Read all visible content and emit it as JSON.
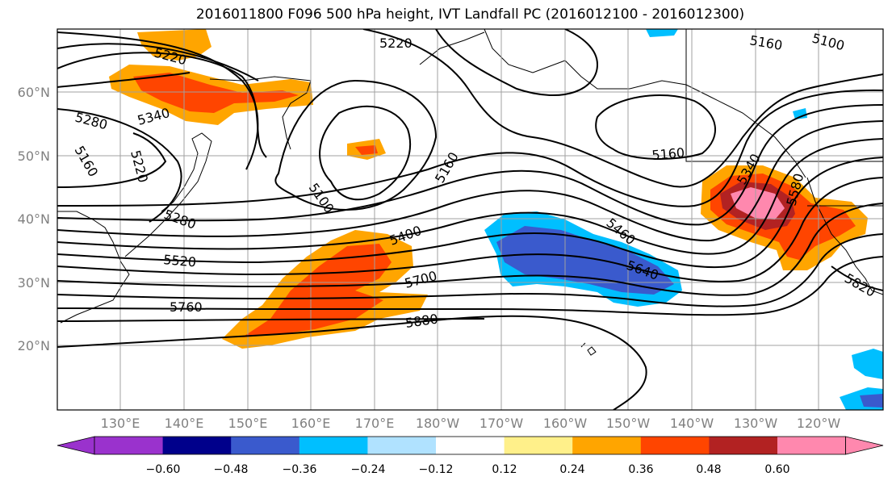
{
  "title": "2016011800 F096 500 hPa height, IVT Landfall PC (2016012100 - 2016012300)",
  "map": {
    "lat_labels": [
      "60°N",
      "50°N",
      "40°N",
      "30°N",
      "20°N"
    ],
    "lon_labels": [
      "130°E",
      "140°E",
      "150°E",
      "160°E",
      "170°E",
      "180°W",
      "170°W",
      "160°W",
      "150°W",
      "140°W",
      "130°W",
      "120°W"
    ],
    "contour_labels": [
      "5220",
      "5220",
      "5160",
      "5100",
      "5340",
      "5280",
      "5160",
      "5220",
      "5100",
      "5160",
      "5160",
      "5340",
      "5580",
      "5280",
      "5520",
      "5400",
      "5460",
      "5700",
      "5640",
      "5760",
      "5880",
      "5820"
    ]
  },
  "colorbar": {
    "ticks": [
      "−0.60",
      "−0.48",
      "−0.36",
      "−0.24",
      "−0.12",
      "0.12",
      "0.24",
      "0.36",
      "0.48",
      "0.60"
    ],
    "colors": [
      "#9a32cd",
      "#00008b",
      "#3a5acd",
      "#00bfff",
      "#b0e2ff",
      "#ffffff",
      "#fff08a",
      "#ffa500",
      "#ff4500",
      "#b22222",
      "#ff88ae"
    ]
  }
}
